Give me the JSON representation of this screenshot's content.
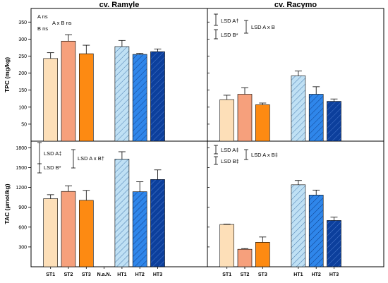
{
  "chart_data": [
    {
      "type": "bar",
      "panel": "TPC cv. Ramyle",
      "title": "cv. Ramyle",
      "ylabel": "TPC (mg/kg)",
      "ylim": [
        0,
        390
      ],
      "yticks": [
        50,
        100,
        150,
        200,
        250,
        300,
        350
      ],
      "categories": [
        "ST1",
        "ST2",
        "ST3",
        "N.a.N.",
        "HT1",
        "HT2",
        "HT3"
      ],
      "values": [
        243,
        294,
        257,
        null,
        278,
        255,
        263
      ],
      "errors": [
        17,
        19,
        25,
        null,
        18,
        3,
        8
      ],
      "annotations": [
        "A ns",
        "B ns",
        "A x B ns"
      ]
    },
    {
      "type": "bar",
      "panel": "TPC cv. Racymo",
      "title": "cv. Racymo",
      "ylabel": "",
      "ylim": [
        0,
        390
      ],
      "yticks": [
        50,
        100,
        150,
        200,
        250,
        300,
        350
      ],
      "categories": [
        "ST1",
        "ST2",
        "ST3",
        "",
        "HT1",
        "HT2",
        "HT3"
      ],
      "values": [
        122,
        138,
        107,
        null,
        192,
        138,
        117
      ],
      "errors": [
        13,
        19,
        5,
        null,
        14,
        22,
        7
      ],
      "annotations": [
        "LSD A†",
        "LSD B*",
        "LSD A x B"
      ]
    },
    {
      "type": "bar",
      "panel": "TAC cv. Ramyle",
      "title": "",
      "ylabel": "TAC (µmol/kg)",
      "ylim": [
        0,
        1900
      ],
      "yticks": [
        300,
        600,
        900,
        1200,
        1500,
        1800
      ],
      "categories": [
        "ST1",
        "ST2",
        "ST3",
        "N.a.N.",
        "HT1",
        "HT2",
        "HT3"
      ],
      "values": [
        1030,
        1140,
        1005,
        null,
        1630,
        1135,
        1320
      ],
      "errors": [
        60,
        85,
        150,
        null,
        110,
        150,
        145
      ],
      "annotations": [
        "LSD A‡",
        "LSD B*",
        "LSD A x B†"
      ]
    },
    {
      "type": "bar",
      "panel": "TAC cv. Racymo",
      "title": "",
      "ylabel": "",
      "ylim": [
        0,
        1900
      ],
      "yticks": [
        300,
        600,
        900,
        1200,
        1500,
        1800
      ],
      "categories": [
        "ST1",
        "ST2",
        "ST3",
        "",
        "HT1",
        "HT2",
        "HT3"
      ],
      "values": [
        640,
        265,
        370,
        null,
        1240,
        1085,
        700
      ],
      "errors": [
        5,
        10,
        80,
        null,
        65,
        75,
        50
      ],
      "annotations": [
        "LSD A‡",
        "LSD B‡",
        "LSD A x B‡"
      ]
    }
  ],
  "colors": {
    "ST1": "#fddfb8",
    "ST2": "#f6a07c",
    "ST3": "#fd8a12",
    "HT1": "#bfe0f4",
    "HT2": "#2f86ea",
    "HT3": "#0c3f9c"
  }
}
